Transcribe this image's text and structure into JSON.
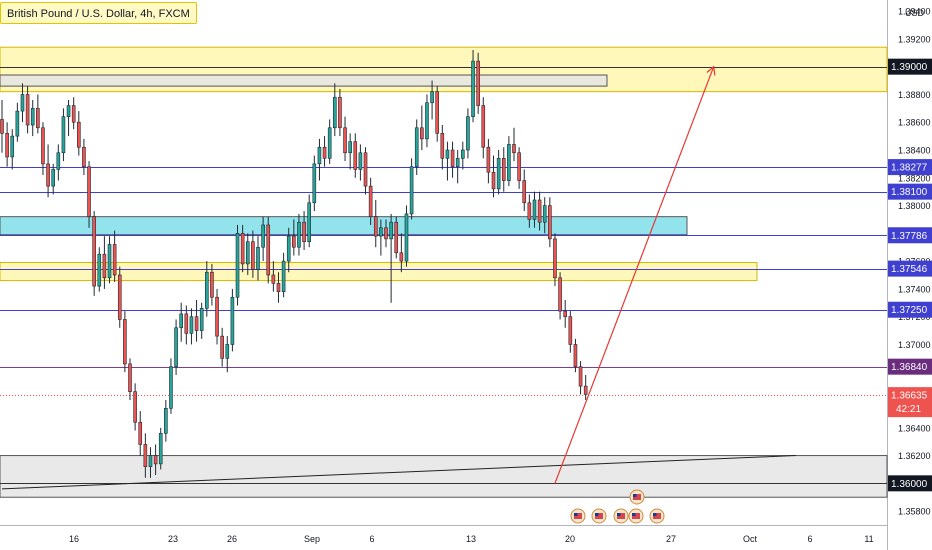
{
  "header": {
    "title": "British Pound / U.S. Dollar, 4h, FXCM"
  },
  "axis": {
    "currency": "USD"
  },
  "colors": {
    "up": "#26a69a",
    "down": "#ef5350",
    "candle_border": "#1f2a33",
    "level_line": "#3f3fd0",
    "yellow_zone": "#fff59d",
    "yellow_border": "#d9b800",
    "blue_zone": "#80deea",
    "gray_zone": "#e5e5e5",
    "arrow": "#e53935"
  },
  "chart_data": {
    "type": "candlestick",
    "symbol": "GBPUSD",
    "timeframe": "4h",
    "ylim": [
      1.357,
      1.3948
    ],
    "y_ticks": [
      "1.35800",
      "1.36200",
      "1.36400",
      "1.37000",
      "1.37200",
      "1.37400",
      "1.37600",
      "1.38000",
      "1.38200",
      "1.38400",
      "1.38600",
      "1.38800",
      "1.39200",
      "1.39400"
    ],
    "x_ticks": [
      "16",
      "23",
      "26",
      "Sep",
      "6",
      "13",
      "20",
      "27",
      "Oct",
      "6",
      "11"
    ],
    "price_labels": [
      {
        "label": "1.39000",
        "value": 1.39,
        "style": "dark"
      },
      {
        "label": "1.38277",
        "value": 1.38277,
        "style": "blue"
      },
      {
        "label": "1.38100",
        "value": 1.381,
        "style": "blue"
      },
      {
        "label": "1.37786",
        "value": 1.37786,
        "style": "blue"
      },
      {
        "label": "1.37546",
        "value": 1.37546,
        "style": "blue"
      },
      {
        "label": "1.37250",
        "value": 1.3725,
        "style": "blue"
      },
      {
        "label": "1.36840",
        "value": 1.3684,
        "style": "purple"
      },
      {
        "label": "1.36000",
        "value": 1.36,
        "style": "dark"
      }
    ],
    "last_price": {
      "label": "1.36635",
      "countdown": "42:21",
      "value": 1.36635
    },
    "zones": [
      {
        "kind": "yellow",
        "top": 1.3914,
        "bottom": 1.3882
      },
      {
        "kind": "gray",
        "top": 1.3894,
        "bottom": 1.3886
      },
      {
        "kind": "blue",
        "top": 1.3792,
        "bottom": 1.3779
      },
      {
        "kind": "yellow",
        "top": 1.3759,
        "bottom": 1.3746
      },
      {
        "kind": "gray",
        "top": 1.362,
        "bottom": 1.359
      }
    ],
    "candles": [
      [
        1.3862,
        1.3876,
        1.3838,
        1.3852
      ],
      [
        1.3852,
        1.386,
        1.3828,
        1.3835
      ],
      [
        1.3835,
        1.3855,
        1.3826,
        1.385
      ],
      [
        1.385,
        1.3874,
        1.3846,
        1.3868
      ],
      [
        1.3868,
        1.3888,
        1.386,
        1.388
      ],
      [
        1.388,
        1.3886,
        1.3852,
        1.3858
      ],
      [
        1.3858,
        1.3876,
        1.385,
        1.387
      ],
      [
        1.387,
        1.388,
        1.3852,
        1.3856
      ],
      [
        1.3856,
        1.386,
        1.3822,
        1.383
      ],
      [
        1.383,
        1.3844,
        1.3806,
        1.3814
      ],
      [
        1.3814,
        1.383,
        1.3808,
        1.3826
      ],
      [
        1.3826,
        1.3844,
        1.3818,
        1.3838
      ],
      [
        1.3838,
        1.387,
        1.3832,
        1.3864
      ],
      [
        1.3864,
        1.3876,
        1.385,
        1.3872
      ],
      [
        1.3872,
        1.3878,
        1.3855,
        1.386
      ],
      [
        1.386,
        1.3868,
        1.3836,
        1.3842
      ],
      [
        1.3842,
        1.3848,
        1.3822,
        1.3828
      ],
      [
        1.3828,
        1.3832,
        1.3784,
        1.3792
      ],
      [
        1.3792,
        1.3796,
        1.3735,
        1.3742
      ],
      [
        1.3742,
        1.377,
        1.3738,
        1.3765
      ],
      [
        1.3765,
        1.3778,
        1.374,
        1.3748
      ],
      [
        1.3748,
        1.3778,
        1.3744,
        1.3772
      ],
      [
        1.3772,
        1.3782,
        1.3745,
        1.375
      ],
      [
        1.375,
        1.3756,
        1.3712,
        1.3718
      ],
      [
        1.3718,
        1.3724,
        1.368,
        1.3686
      ],
      [
        1.3686,
        1.369,
        1.366,
        1.3666
      ],
      [
        1.3666,
        1.3672,
        1.3638,
        1.3644
      ],
      [
        1.3644,
        1.3652,
        1.362,
        1.3628
      ],
      [
        1.3628,
        1.3636,
        1.3604,
        1.3612
      ],
      [
        1.3612,
        1.3626,
        1.3604,
        1.362
      ],
      [
        1.362,
        1.3628,
        1.3606,
        1.3614
      ],
      [
        1.3614,
        1.364,
        1.361,
        1.3636
      ],
      [
        1.3636,
        1.366,
        1.363,
        1.3654
      ],
      [
        1.3654,
        1.369,
        1.365,
        1.3684
      ],
      [
        1.3684,
        1.3718,
        1.3678,
        1.3712
      ],
      [
        1.3712,
        1.373,
        1.3702,
        1.3722
      ],
      [
        1.3722,
        1.3728,
        1.37,
        1.3708
      ],
      [
        1.3708,
        1.3726,
        1.37,
        1.372
      ],
      [
        1.372,
        1.3732,
        1.3702,
        1.371
      ],
      [
        1.371,
        1.373,
        1.3704,
        1.3726
      ],
      [
        1.3726,
        1.376,
        1.372,
        1.3752
      ],
      [
        1.3752,
        1.3758,
        1.3728,
        1.3734
      ],
      [
        1.3734,
        1.374,
        1.37,
        1.3706
      ],
      [
        1.3706,
        1.3712,
        1.3684,
        1.369
      ],
      [
        1.369,
        1.3706,
        1.368,
        1.37
      ],
      [
        1.37,
        1.374,
        1.3695,
        1.3734
      ],
      [
        1.3734,
        1.3786,
        1.3728,
        1.378
      ],
      [
        1.378,
        1.3786,
        1.3752,
        1.3758
      ],
      [
        1.3758,
        1.378,
        1.375,
        1.3774
      ],
      [
        1.3774,
        1.3782,
        1.3748,
        1.3754
      ],
      [
        1.3754,
        1.3778,
        1.3746,
        1.377
      ],
      [
        1.377,
        1.3792,
        1.376,
        1.3786
      ],
      [
        1.3786,
        1.3792,
        1.3744,
        1.375
      ],
      [
        1.375,
        1.376,
        1.3738,
        1.3744
      ],
      [
        1.3744,
        1.3752,
        1.373,
        1.3738
      ],
      [
        1.3738,
        1.3766,
        1.3734,
        1.376
      ],
      [
        1.376,
        1.3784,
        1.3752,
        1.3778
      ],
      [
        1.3778,
        1.379,
        1.3764,
        1.377
      ],
      [
        1.377,
        1.3794,
        1.3764,
        1.3788
      ],
      [
        1.3788,
        1.3796,
        1.3768,
        1.3774
      ],
      [
        1.3774,
        1.3808,
        1.377,
        1.3802
      ],
      [
        1.3802,
        1.3836,
        1.3796,
        1.383
      ],
      [
        1.383,
        1.3848,
        1.3818,
        1.3842
      ],
      [
        1.3842,
        1.385,
        1.3828,
        1.3834
      ],
      [
        1.3834,
        1.3862,
        1.383,
        1.3856
      ],
      [
        1.3856,
        1.3888,
        1.385,
        1.3878
      ],
      [
        1.3878,
        1.3884,
        1.385,
        1.3856
      ],
      [
        1.3856,
        1.3864,
        1.3832,
        1.3838
      ],
      [
        1.3838,
        1.3852,
        1.3826,
        1.3846
      ],
      [
        1.3846,
        1.3852,
        1.382,
        1.3826
      ],
      [
        1.3826,
        1.3844,
        1.3818,
        1.3838
      ],
      [
        1.3838,
        1.3842,
        1.3808,
        1.3814
      ],
      [
        1.3814,
        1.382,
        1.3786,
        1.3792
      ],
      [
        1.3792,
        1.3804,
        1.377,
        1.3778
      ],
      [
        1.3778,
        1.379,
        1.3764,
        1.3784
      ],
      [
        1.3784,
        1.379,
        1.377,
        1.3776
      ],
      [
        1.3776,
        1.3794,
        1.373,
        1.3788
      ],
      [
        1.3788,
        1.3792,
        1.3762,
        1.3766
      ],
      [
        1.3766,
        1.378,
        1.3752,
        1.376
      ],
      [
        1.376,
        1.38,
        1.3756,
        1.3794
      ],
      [
        1.3794,
        1.3834,
        1.379,
        1.3828
      ],
      [
        1.3828,
        1.3862,
        1.3822,
        1.3856
      ],
      [
        1.3856,
        1.3872,
        1.384,
        1.3848
      ],
      [
        1.3848,
        1.388,
        1.3842,
        1.3874
      ],
      [
        1.3874,
        1.389,
        1.3862,
        1.3882
      ],
      [
        1.3882,
        1.3886,
        1.3846,
        1.3852
      ],
      [
        1.3852,
        1.3858,
        1.3826,
        1.3834
      ],
      [
        1.3834,
        1.3846,
        1.3818,
        1.384
      ],
      [
        1.384,
        1.3846,
        1.382,
        1.3828
      ],
      [
        1.3828,
        1.384,
        1.3816,
        1.3834
      ],
      [
        1.3834,
        1.3846,
        1.3826,
        1.384
      ],
      [
        1.384,
        1.387,
        1.3834,
        1.3864
      ],
      [
        1.3864,
        1.3912,
        1.386,
        1.3904
      ],
      [
        1.3904,
        1.391,
        1.3866,
        1.3872
      ],
      [
        1.3872,
        1.3878,
        1.3834,
        1.3842
      ],
      [
        1.3842,
        1.3848,
        1.3816,
        1.3824
      ],
      [
        1.3824,
        1.3836,
        1.3806,
        1.3812
      ],
      [
        1.3812,
        1.384,
        1.3808,
        1.3834
      ],
      [
        1.3834,
        1.3842,
        1.381,
        1.3818
      ],
      [
        1.3818,
        1.385,
        1.3814,
        1.3844
      ],
      [
        1.3844,
        1.3856,
        1.3832,
        1.3838
      ],
      [
        1.3838,
        1.3842,
        1.3812,
        1.3818
      ],
      [
        1.3818,
        1.3826,
        1.3796,
        1.3802
      ],
      [
        1.3802,
        1.3808,
        1.3784,
        1.379
      ],
      [
        1.379,
        1.381,
        1.3784,
        1.3804
      ],
      [
        1.3804,
        1.381,
        1.3782,
        1.3788
      ],
      [
        1.3788,
        1.3806,
        1.378,
        1.38
      ],
      [
        1.38,
        1.3806,
        1.377,
        1.3776
      ],
      [
        1.3776,
        1.378,
        1.3742,
        1.3748
      ],
      [
        1.3748,
        1.3752,
        1.3718,
        1.3724
      ],
      [
        1.3724,
        1.3732,
        1.3712,
        1.372
      ],
      [
        1.372,
        1.3724,
        1.3694,
        1.37
      ],
      [
        1.37,
        1.3704,
        1.368,
        1.3684
      ],
      [
        1.3684,
        1.3688,
        1.3664,
        1.367
      ],
      [
        1.367,
        1.3678,
        1.366,
        1.3664
      ]
    ],
    "trendline": {
      "from": {
        "i": 0,
        "price": 1.3596
      },
      "to": {
        "i": 155,
        "price": 1.362
      }
    },
    "arrow": {
      "from": {
        "i": 108,
        "price": 1.36
      },
      "to": {
        "i": 139,
        "price": 1.39
      }
    }
  }
}
